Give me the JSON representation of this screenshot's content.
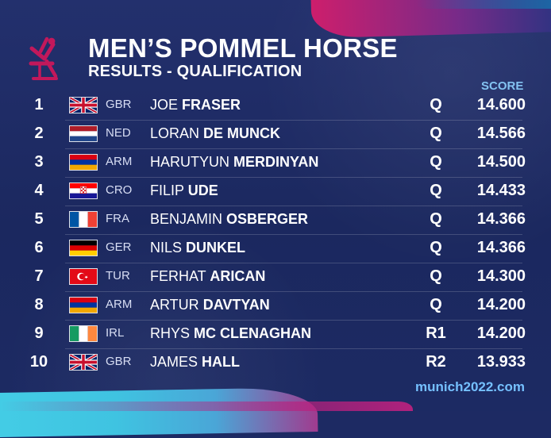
{
  "title": "MEN’S POMMEL HORSE",
  "subtitle": "RESULTS - QUALIFICATION",
  "score_header": "SCORE",
  "footer_url": "munich2022.com",
  "results": [
    {
      "rank": "1",
      "flag": "gb-flag",
      "code": "GBR",
      "first_name": "JOE",
      "last_name": "FRASER",
      "status": "Q",
      "score": "14.600"
    },
    {
      "rank": "2",
      "flag": "nl-flag",
      "code": "NED",
      "first_name": "LORAN",
      "last_name": "DE MUNCK",
      "status": "Q",
      "score": "14.566"
    },
    {
      "rank": "3",
      "flag": "am-flag",
      "code": "ARM",
      "first_name": "HARUTYUN",
      "last_name": "MERDINYAN",
      "status": "Q",
      "score": "14.500"
    },
    {
      "rank": "4",
      "flag": "hr-flag",
      "code": "CRO",
      "first_name": "FILIP",
      "last_name": "UDE",
      "status": "Q",
      "score": "14.433"
    },
    {
      "rank": "5",
      "flag": "fr-flag",
      "code": "FRA",
      "first_name": "BENJAMIN",
      "last_name": "OSBERGER",
      "status": "Q",
      "score": "14.366"
    },
    {
      "rank": "6",
      "flag": "de-flag",
      "code": "GER",
      "first_name": "NILS",
      "last_name": "DUNKEL",
      "status": "Q",
      "score": "14.366"
    },
    {
      "rank": "7",
      "flag": "tr-flag",
      "code": "TUR",
      "first_name": "FERHAT",
      "last_name": "ARICAN",
      "status": "Q",
      "score": "14.300"
    },
    {
      "rank": "8",
      "flag": "am-flag",
      "code": "ARM",
      "first_name": "ARTUR",
      "last_name": "DAVTYAN",
      "status": "Q",
      "score": "14.200"
    },
    {
      "rank": "9",
      "flag": "ie-flag",
      "code": "IRL",
      "first_name": "RHYS",
      "last_name": "MC CLENAGHAN",
      "status": "R1",
      "score": "14.200"
    },
    {
      "rank": "10",
      "flag": "gb-flag",
      "code": "GBR",
      "first_name": "JAMES",
      "last_name": "HALL",
      "status": "R2",
      "score": "13.933"
    }
  ],
  "colors": {
    "background": "#1d2a63",
    "score_header": "#84c3f2",
    "url": "#75c0ff",
    "logo": "#c2185b"
  },
  "icons": {
    "logo": "pommel-horse-icon"
  }
}
